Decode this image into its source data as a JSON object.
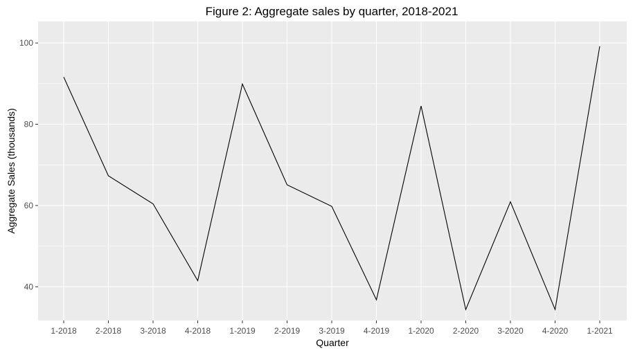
{
  "chart_data": {
    "type": "line",
    "title": "Figure 2: Aggregate sales by quarter, 2018-2021",
    "xlabel": "Quarter",
    "ylabel": "Aggregate Sales (thousands)",
    "categories": [
      "1-2018",
      "2-2018",
      "3-2018",
      "4-2018",
      "1-2019",
      "2-2019",
      "3-2019",
      "4-2019",
      "1-2020",
      "2-2020",
      "3-2020",
      "4-2020",
      "1-2021"
    ],
    "values": [
      91.6,
      67.3,
      60.4,
      41.5,
      89.9,
      65.1,
      59.8,
      36.8,
      84.5,
      34.4,
      60.9,
      34.4,
      99.2
    ],
    "ylim": [
      31.7,
      105.3
    ],
    "yticks": [
      40,
      60,
      80,
      100
    ],
    "grid": true,
    "legend": "none",
    "colors": {
      "panel": "#ebebeb",
      "grid": "#ffffff",
      "line": "#000000",
      "tick_label": "#4d4d4d"
    }
  }
}
